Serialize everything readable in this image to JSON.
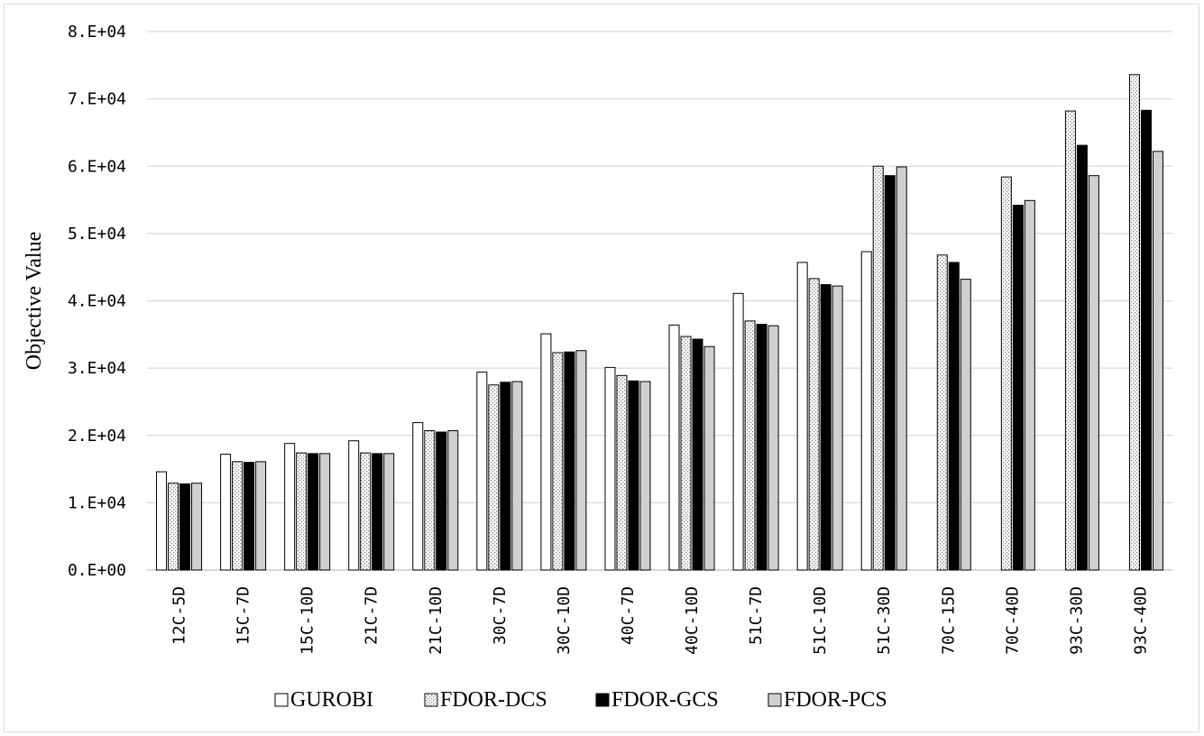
{
  "chart_data": {
    "type": "bar",
    "title": "",
    "xlabel": "",
    "ylabel": "Objective Value",
    "ylim": [
      0,
      80000
    ],
    "yticks": [
      0,
      10000,
      20000,
      30000,
      40000,
      50000,
      60000,
      70000,
      80000
    ],
    "ytick_labels": [
      "0.E+00",
      "1.E+04",
      "2.E+04",
      "3.E+04",
      "4.E+04",
      "5.E+04",
      "6.E+04",
      "7.E+04",
      "8.E+04"
    ],
    "grid": true,
    "legend_position": "bottom",
    "categories": [
      "12C-5D",
      "15C-7D",
      "15C-10D",
      "21C-7D",
      "21C-10D",
      "30C-7D",
      "30C-10D",
      "40C-7D",
      "40C-10D",
      "51C-7D",
      "51C-10D",
      "51C-30D",
      "70C-15D",
      "70C-40D",
      "93C-30D",
      "93C-40D"
    ],
    "series": [
      {
        "name": "GUROBI",
        "fill": "white",
        "values": [
          14600,
          17200,
          18800,
          19200,
          21900,
          29400,
          35100,
          30100,
          36400,
          41100,
          45700,
          47300,
          null,
          null,
          null,
          null
        ]
      },
      {
        "name": "FDOR-DCS",
        "fill": "dotted",
        "values": [
          12900,
          16100,
          17400,
          17400,
          20700,
          27500,
          32300,
          28900,
          34700,
          37000,
          43300,
          60000,
          46800,
          58400,
          68200,
          73600
        ]
      },
      {
        "name": "FDOR-GCS",
        "fill": "black",
        "values": [
          12800,
          16000,
          17300,
          17300,
          20500,
          27900,
          32400,
          28100,
          34300,
          36500,
          42400,
          58600,
          45700,
          54200,
          63100,
          68300
        ]
      },
      {
        "name": "FDOR-PCS",
        "fill": "gray",
        "values": [
          12900,
          16100,
          17300,
          17300,
          20700,
          28000,
          32600,
          28000,
          33200,
          36300,
          42200,
          59900,
          43200,
          54900,
          58600,
          62200
        ]
      }
    ],
    "colors": {
      "grid": "#d9d9d9",
      "axis": "#bfbfbf",
      "bar_stroke": "#000000",
      "black_fill": "#000000",
      "gray_fill": "#d0d0d0",
      "white_fill": "#ffffff",
      "dot": "#7f7f7f"
    }
  }
}
